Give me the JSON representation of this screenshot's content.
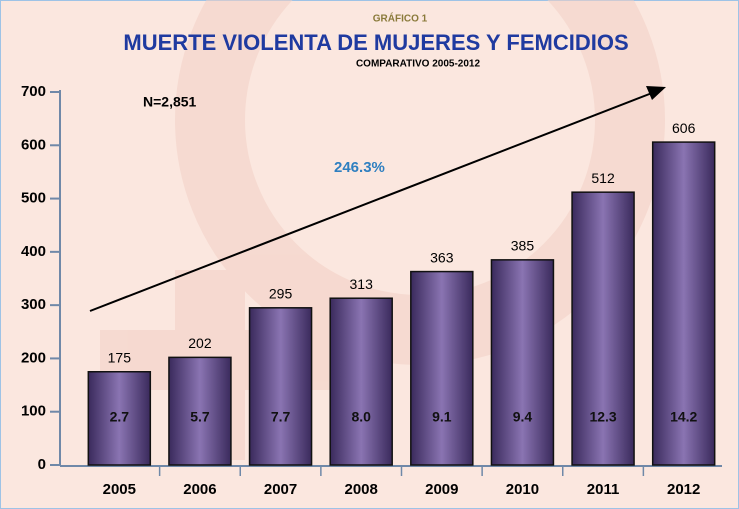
{
  "chart_data": {
    "type": "bar",
    "supertitle": "GRÁFICO 1",
    "title": "MUERTE VIOLENTA DE MUJERES Y FEMCIDIOS",
    "subtitle": "COMPARATIVO 2005-2012",
    "annotations": [
      "N=2,851",
      "246.3%"
    ],
    "categories": [
      "2005",
      "2006",
      "2007",
      "2008",
      "2009",
      "2010",
      "2011",
      "2012"
    ],
    "values": [
      175,
      202,
      295,
      313,
      363,
      385,
      512,
      606
    ],
    "inner_labels": [
      "2.7",
      "5.7",
      "7.7",
      "8.0",
      "9.1",
      "9.4",
      "12.3",
      "14.2"
    ],
    "color": "#5a4580",
    "ylim": [
      0,
      700
    ],
    "yticks": [
      0,
      100,
      200,
      300,
      400,
      500,
      600,
      700
    ],
    "grid": false
  }
}
